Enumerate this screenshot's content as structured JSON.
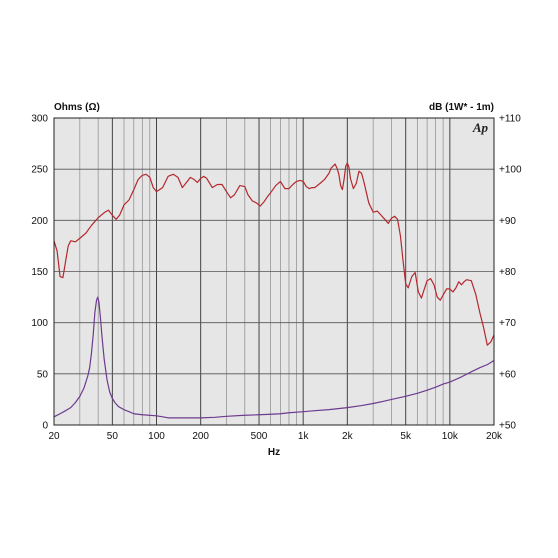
{
  "chart_data": {
    "type": "line",
    "left_axis_label": "Ohms (Ω)",
    "right_axis_label": "dB (1W* - 1m)",
    "xlabel": "Hz",
    "logo": "Ap",
    "x_scale": "log",
    "xlim": [
      20,
      20000
    ],
    "ylim_left": [
      0,
      300
    ],
    "ylim_right": [
      50,
      110
    ],
    "x_ticks": [
      {
        "value": 20,
        "label": "20"
      },
      {
        "value": 50,
        "label": "50"
      },
      {
        "value": 100,
        "label": "100"
      },
      {
        "value": 200,
        "label": "200"
      },
      {
        "value": 500,
        "label": "500"
      },
      {
        "value": 1000,
        "label": "1k"
      },
      {
        "value": 2000,
        "label": "2k"
      },
      {
        "value": 5000,
        "label": "5k"
      },
      {
        "value": 10000,
        "label": "10k"
      },
      {
        "value": 20000,
        "label": "20k"
      }
    ],
    "y_ticks_left": [
      {
        "value": 0,
        "label": "0"
      },
      {
        "value": 50,
        "label": "50"
      },
      {
        "value": 100,
        "label": "100"
      },
      {
        "value": 150,
        "label": "150"
      },
      {
        "value": 200,
        "label": "200"
      },
      {
        "value": 250,
        "label": "250"
      },
      {
        "value": 300,
        "label": "300"
      }
    ],
    "y_ticks_right": [
      {
        "value": 50,
        "label": "+50"
      },
      {
        "value": 60,
        "label": "+60"
      },
      {
        "value": 70,
        "label": "+70"
      },
      {
        "value": 80,
        "label": "+80"
      },
      {
        "value": 90,
        "label": "+90"
      },
      {
        "value": 100,
        "label": "+100"
      },
      {
        "value": 110,
        "label": "+110"
      }
    ],
    "grid": true,
    "series": [
      {
        "axis": "right",
        "color": "#b5282e",
        "points": [
          [
            20,
            86
          ],
          [
            21,
            84
          ],
          [
            22,
            79
          ],
          [
            23,
            78.8
          ],
          [
            24,
            82
          ],
          [
            25,
            85
          ],
          [
            26,
            86
          ],
          [
            28,
            85.8
          ],
          [
            30,
            86.5
          ],
          [
            33,
            87.5
          ],
          [
            36,
            89
          ],
          [
            40,
            90.5
          ],
          [
            44,
            91.5
          ],
          [
            47,
            92
          ],
          [
            50,
            91
          ],
          [
            53,
            90.2
          ],
          [
            56,
            91
          ],
          [
            60,
            93
          ],
          [
            65,
            94
          ],
          [
            70,
            96
          ],
          [
            75,
            98
          ],
          [
            80,
            98.8
          ],
          [
            85,
            99
          ],
          [
            90,
            98.4
          ],
          [
            95,
            96.4
          ],
          [
            100,
            95.6
          ],
          [
            110,
            96.4
          ],
          [
            120,
            98.6
          ],
          [
            130,
            99
          ],
          [
            140,
            98.4
          ],
          [
            150,
            96.4
          ],
          [
            160,
            97.4
          ],
          [
            170,
            98.4
          ],
          [
            180,
            98
          ],
          [
            190,
            97.4
          ],
          [
            200,
            98.2
          ],
          [
            210,
            98.6
          ],
          [
            220,
            98.2
          ],
          [
            240,
            96.4
          ],
          [
            260,
            97
          ],
          [
            280,
            97
          ],
          [
            300,
            95.6
          ],
          [
            320,
            94.4
          ],
          [
            340,
            95
          ],
          [
            370,
            96.8
          ],
          [
            400,
            96.6
          ],
          [
            420,
            95
          ],
          [
            450,
            93.8
          ],
          [
            480,
            93.4
          ],
          [
            510,
            92.8
          ],
          [
            540,
            93.6
          ],
          [
            570,
            94.6
          ],
          [
            600,
            95.4
          ],
          [
            650,
            96.8
          ],
          [
            700,
            97.6
          ],
          [
            750,
            96.2
          ],
          [
            800,
            96.2
          ],
          [
            850,
            97
          ],
          [
            900,
            97.6
          ],
          [
            950,
            97.8
          ],
          [
            1000,
            97.6
          ],
          [
            1050,
            96.6
          ],
          [
            1100,
            96.2
          ],
          [
            1150,
            96.4
          ],
          [
            1200,
            96.4
          ],
          [
            1300,
            97.2
          ],
          [
            1400,
            98
          ],
          [
            1500,
            99.2
          ],
          [
            1550,
            100.2
          ],
          [
            1600,
            100.6
          ],
          [
            1650,
            101
          ],
          [
            1700,
            100.2
          ],
          [
            1750,
            99
          ],
          [
            1800,
            96.8
          ],
          [
            1850,
            96
          ],
          [
            1900,
            98
          ],
          [
            1950,
            100.6
          ],
          [
            2000,
            101.2
          ],
          [
            2050,
            100.4
          ],
          [
            2100,
            98.2
          ],
          [
            2200,
            96.2
          ],
          [
            2300,
            97.2
          ],
          [
            2400,
            99.6
          ],
          [
            2500,
            99.2
          ],
          [
            2600,
            97.4
          ],
          [
            2800,
            93.4
          ],
          [
            3000,
            91.6
          ],
          [
            3200,
            91.8
          ],
          [
            3400,
            91
          ],
          [
            3600,
            90.2
          ],
          [
            3800,
            89.4
          ],
          [
            4000,
            90.4
          ],
          [
            4200,
            90.8
          ],
          [
            4400,
            90.2
          ],
          [
            4600,
            87
          ],
          [
            4800,
            82
          ],
          [
            5000,
            77.6
          ],
          [
            5200,
            76.8
          ],
          [
            5500,
            79
          ],
          [
            5800,
            79.8
          ],
          [
            6100,
            76
          ],
          [
            6400,
            74.8
          ],
          [
            6700,
            76.6
          ],
          [
            7000,
            78.2
          ],
          [
            7400,
            78.6
          ],
          [
            7800,
            77.4
          ],
          [
            8200,
            75
          ],
          [
            8600,
            74.4
          ],
          [
            9000,
            75.4
          ],
          [
            9500,
            76.6
          ],
          [
            10000,
            76.6
          ],
          [
            10500,
            76
          ],
          [
            11000,
            76.8
          ],
          [
            11500,
            78
          ],
          [
            12000,
            77.4
          ],
          [
            12500,
            78
          ],
          [
            13000,
            78.4
          ],
          [
            14000,
            78.2
          ],
          [
            15000,
            75.6
          ],
          [
            16000,
            72
          ],
          [
            17000,
            69
          ],
          [
            18000,
            65.6
          ],
          [
            19000,
            66.2
          ],
          [
            20000,
            67.6
          ]
        ]
      },
      {
        "axis": "left",
        "color": "#6d3a8f",
        "points": [
          [
            20,
            8
          ],
          [
            22,
            11
          ],
          [
            24,
            14
          ],
          [
            26,
            17
          ],
          [
            28,
            22
          ],
          [
            30,
            28
          ],
          [
            32,
            36
          ],
          [
            34,
            48
          ],
          [
            35,
            56
          ],
          [
            36,
            70
          ],
          [
            37,
            88
          ],
          [
            38,
            110
          ],
          [
            39,
            122
          ],
          [
            39.8,
            125
          ],
          [
            40.5,
            120
          ],
          [
            41.5,
            104
          ],
          [
            42.5,
            86
          ],
          [
            44,
            64
          ],
          [
            46,
            44
          ],
          [
            48,
            32
          ],
          [
            50,
            26
          ],
          [
            52,
            22
          ],
          [
            55,
            18
          ],
          [
            60,
            15
          ],
          [
            65,
            13
          ],
          [
            70,
            11
          ],
          [
            80,
            10
          ],
          [
            100,
            9
          ],
          [
            110,
            8
          ],
          [
            120,
            7
          ],
          [
            150,
            7
          ],
          [
            200,
            7
          ],
          [
            250,
            7.5
          ],
          [
            300,
            8.5
          ],
          [
            400,
            9.5
          ],
          [
            500,
            10
          ],
          [
            600,
            10.5
          ],
          [
            700,
            11
          ],
          [
            800,
            12
          ],
          [
            1000,
            13
          ],
          [
            1200,
            14
          ],
          [
            1500,
            15
          ],
          [
            2000,
            17
          ],
          [
            2500,
            19
          ],
          [
            3000,
            21
          ],
          [
            3500,
            23
          ],
          [
            4000,
            25
          ],
          [
            5000,
            28
          ],
          [
            6000,
            31
          ],
          [
            7000,
            34
          ],
          [
            8000,
            37
          ],
          [
            9000,
            40
          ],
          [
            10000,
            42
          ],
          [
            12000,
            47
          ],
          [
            14000,
            52
          ],
          [
            16000,
            56
          ],
          [
            18000,
            59
          ],
          [
            20000,
            63
          ]
        ]
      }
    ]
  }
}
